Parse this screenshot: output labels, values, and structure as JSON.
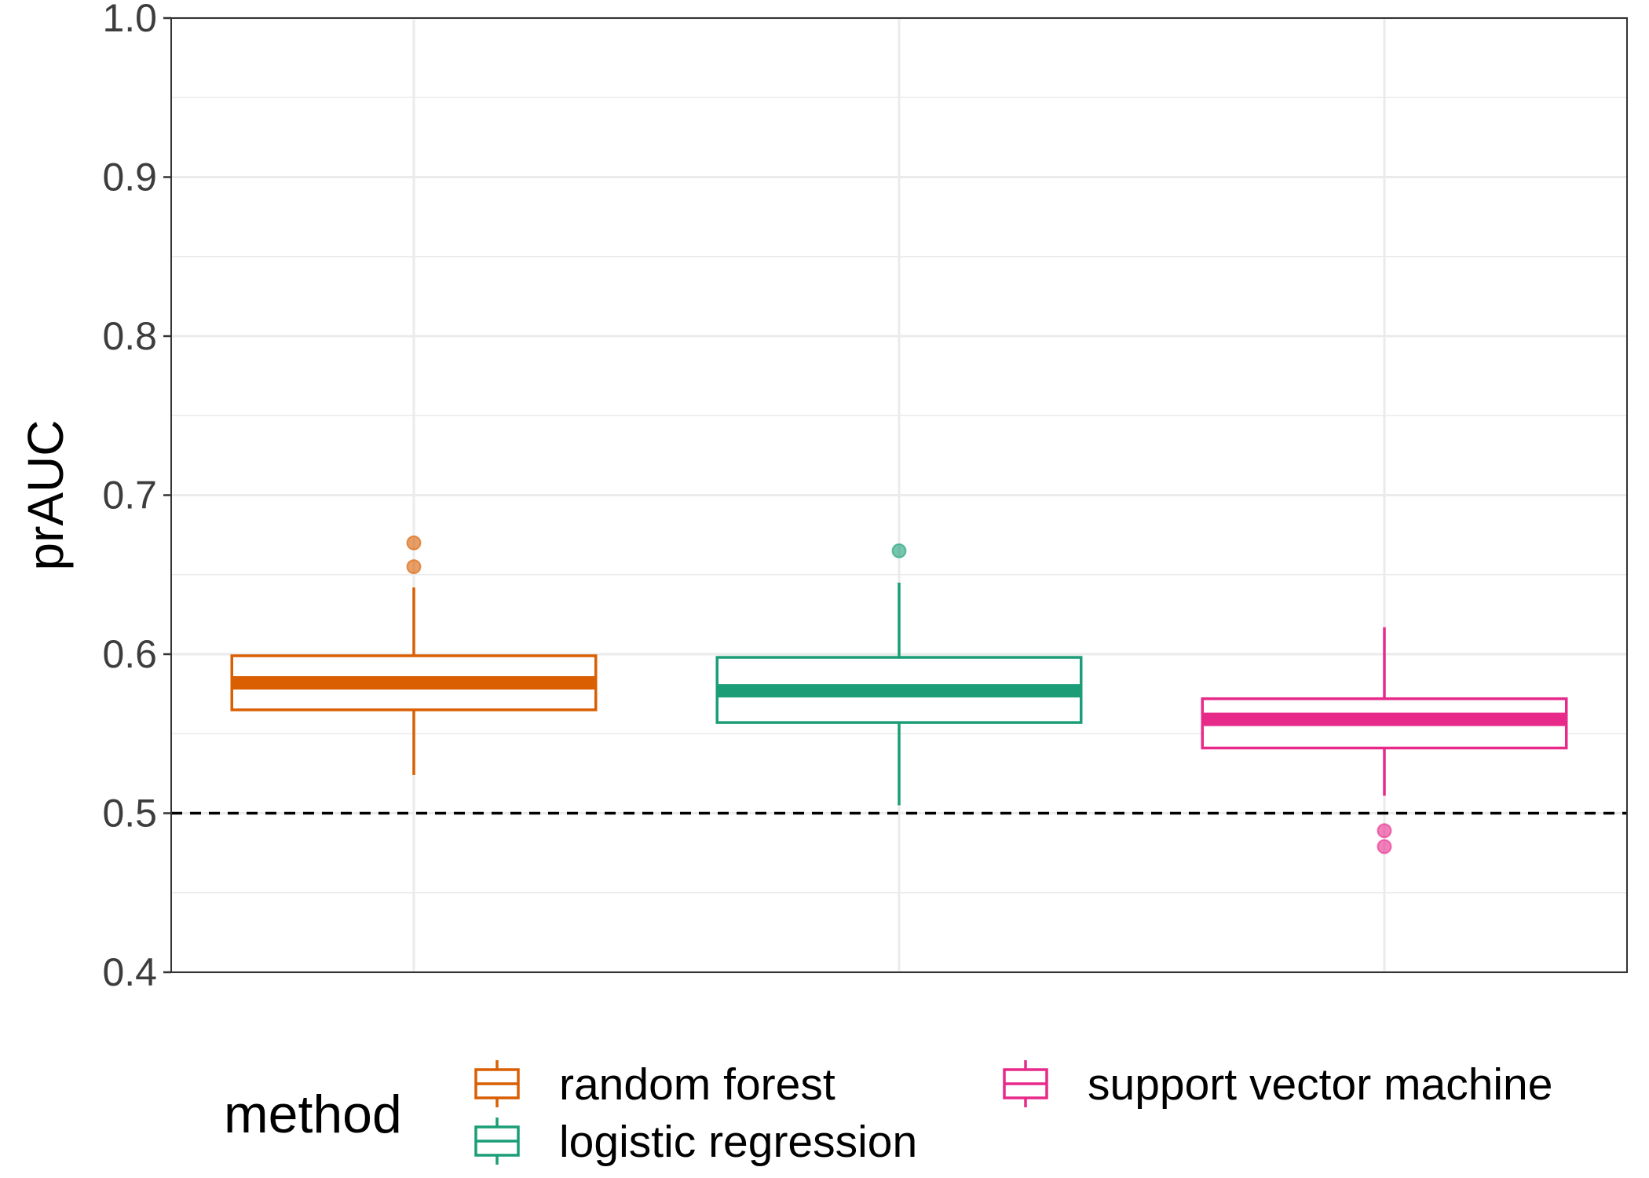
{
  "chart_data": {
    "type": "box",
    "title": "",
    "xlabel": "",
    "ylabel": "prAUC",
    "ylim": [
      0.4,
      1.0
    ],
    "yticks": [
      "0.4",
      "0.5",
      "0.6",
      "0.7",
      "0.8",
      "0.9",
      "1.0"
    ],
    "grid": true,
    "reference_line": {
      "y": 0.5,
      "style": "dashed",
      "color": "#000000"
    },
    "legend": {
      "title": "method",
      "position": "bottom"
    },
    "series": [
      {
        "name": "random forest",
        "color": "#D95F02",
        "whisker_low": 0.524,
        "q1": 0.565,
        "median": 0.582,
        "q3": 0.599,
        "whisker_high": 0.642,
        "outliers": [
          0.67,
          0.655
        ]
      },
      {
        "name": "logistic regression",
        "color": "#1B9E77",
        "whisker_low": 0.505,
        "q1": 0.557,
        "median": 0.577,
        "q3": 0.598,
        "whisker_high": 0.645,
        "outliers": [
          0.665
        ]
      },
      {
        "name": "support vector machine",
        "color": "#E7298A",
        "whisker_low": 0.511,
        "q1": 0.541,
        "median": 0.559,
        "q3": 0.572,
        "whisker_high": 0.617,
        "outliers": [
          0.489,
          0.479
        ]
      }
    ]
  }
}
